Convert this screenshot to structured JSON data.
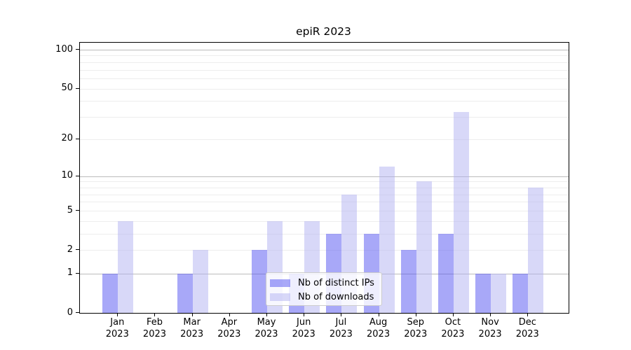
{
  "chart_data": {
    "type": "bar",
    "title": "epiR 2023",
    "categories": [
      "Jan",
      "Feb",
      "Mar",
      "Apr",
      "May",
      "Jun",
      "Jul",
      "Aug",
      "Sep",
      "Oct",
      "Nov",
      "Dec"
    ],
    "x_year": "2023",
    "series": [
      {
        "name": "Nb of distinct IPs",
        "color": "#a8a8f8",
        "values": [
          1,
          0,
          1,
          0,
          2,
          1,
          3,
          3,
          2,
          3,
          1,
          1
        ]
      },
      {
        "name": "Nb of downloads",
        "color": "#d8d8f8",
        "values": [
          4,
          0,
          2,
          0,
          4,
          4,
          7,
          12,
          9,
          33,
          1,
          8
        ]
      }
    ],
    "y_ticks": [
      0,
      1,
      2,
      5,
      10,
      20,
      50,
      100
    ],
    "major_gridlines": [
      1,
      10,
      100
    ],
    "minor_gridlines": [
      2,
      3,
      4,
      5,
      6,
      7,
      8,
      9,
      20,
      30,
      40,
      50,
      60,
      70,
      80,
      90
    ],
    "y_scale": "log10(1+count)",
    "ylim": [
      0,
      114
    ],
    "grid": true,
    "legend_position": "lower center",
    "legend_entries": [
      "Nb of distinct IPs",
      "Nb of downloads"
    ]
  }
}
